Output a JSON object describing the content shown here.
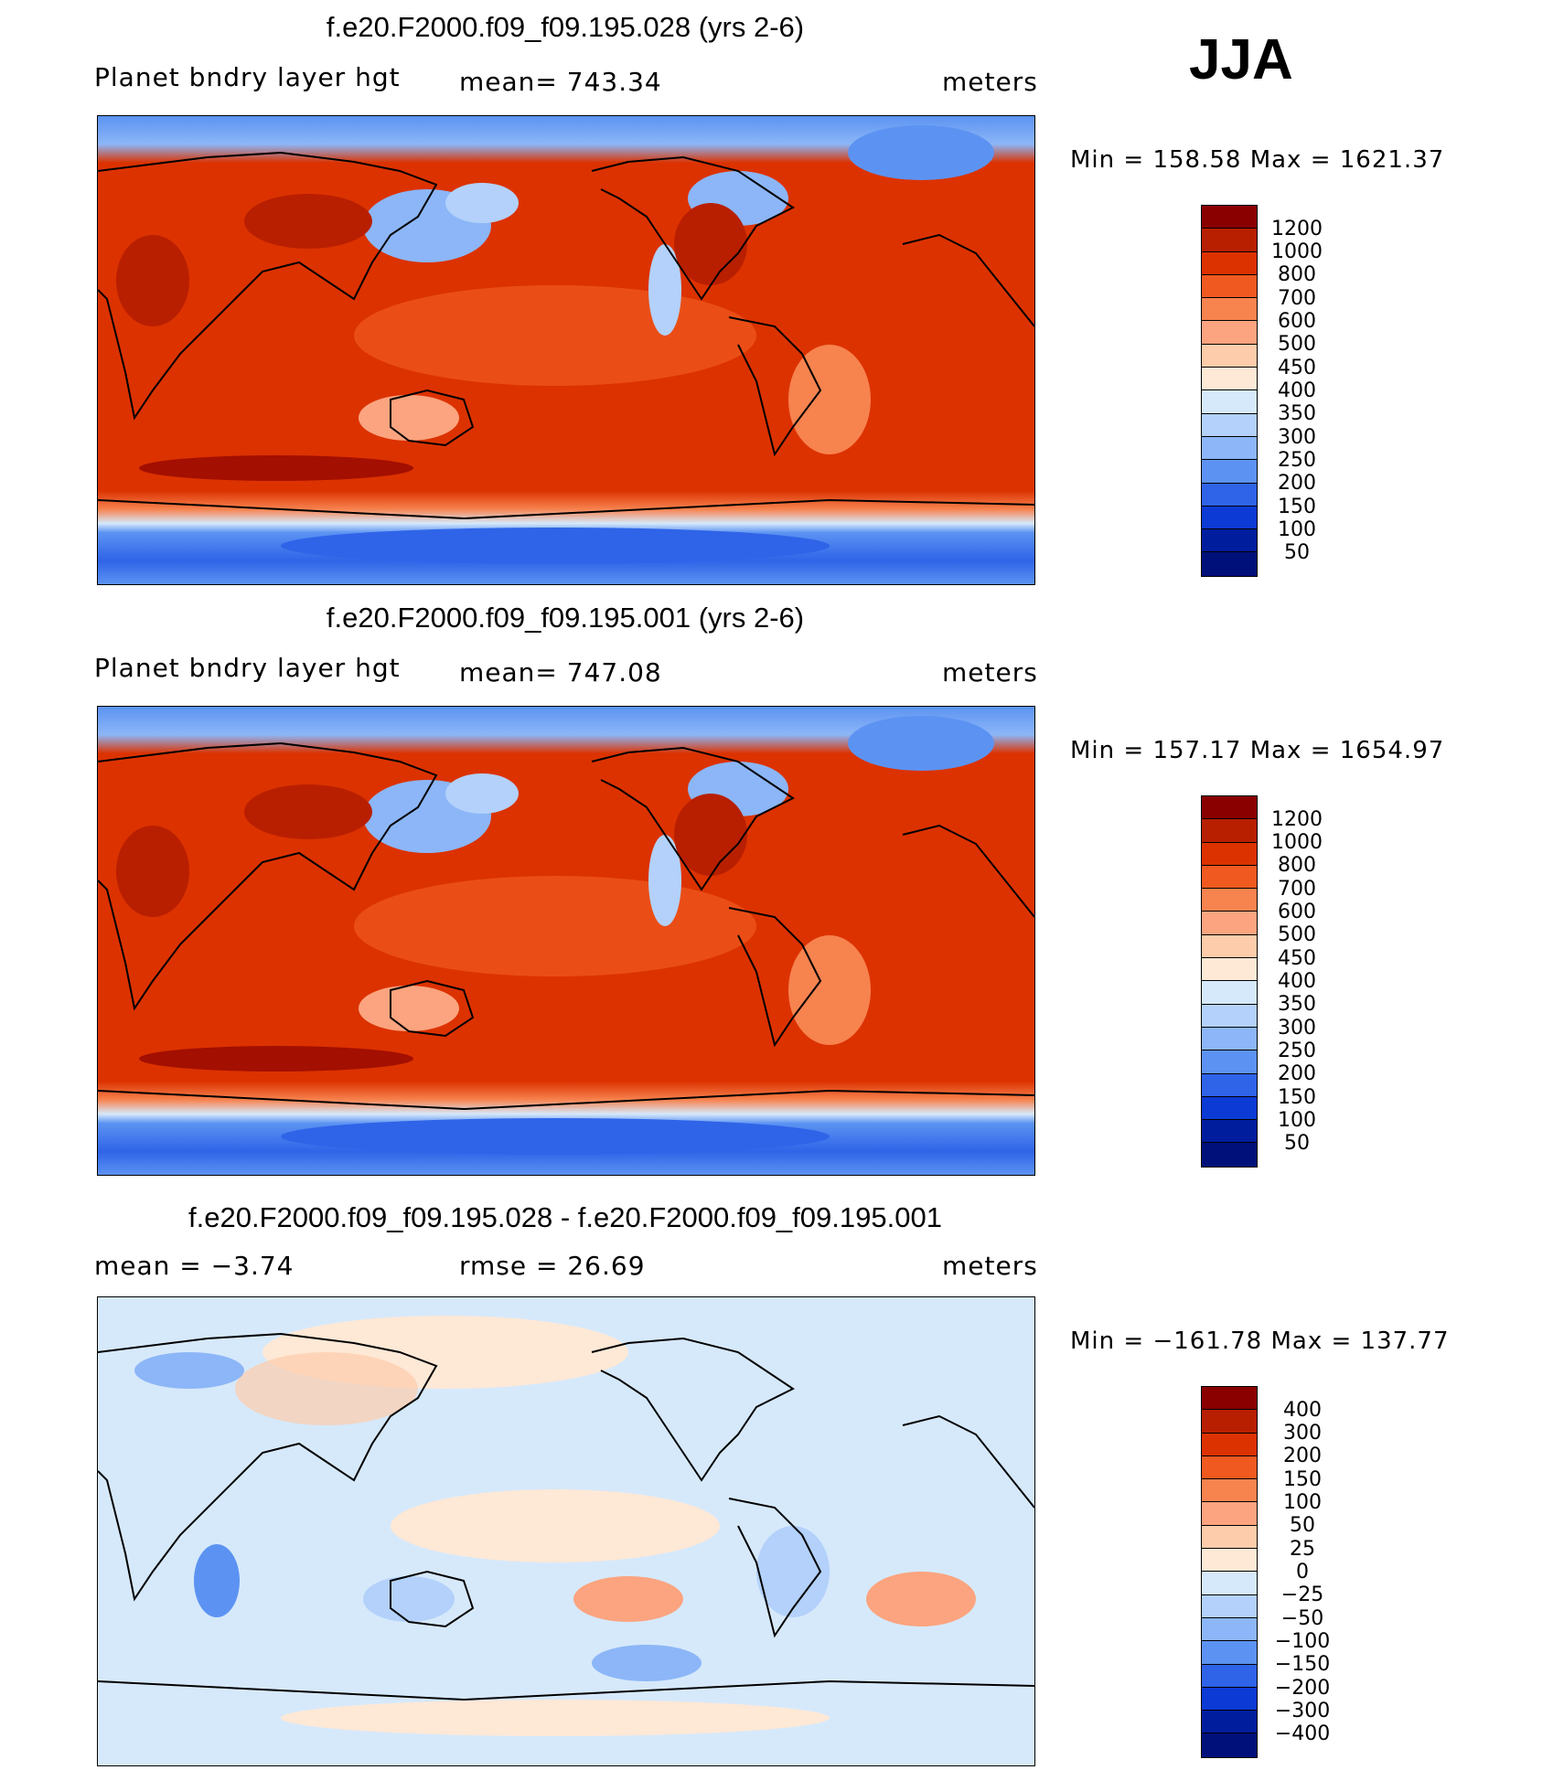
{
  "season": "JJA",
  "panels": [
    {
      "title": "f.e20.F2000.f09_f09.195.028 (yrs 2-6)",
      "left_label": "Planet bndry layer hgt",
      "center_label": "mean=  743.34",
      "units": "meters",
      "minmax": "Min  =  158.58  Max  =  1621.37",
      "colorbar": {
        "labels": [
          "1200",
          "1000",
          "800",
          "700",
          "600",
          "500",
          "450",
          "400",
          "350",
          "300",
          "250",
          "200",
          "150",
          "100",
          "50"
        ],
        "colors": [
          "#8a0000",
          "#b81f00",
          "#dc3200",
          "#f05a20",
          "#f7834f",
          "#fba47f",
          "#fdccab",
          "#fee8d6",
          "#d6e9fb",
          "#b3d1fa",
          "#8cb6f7",
          "#5c93f2",
          "#2f64e8",
          "#0c3ad4",
          "#001d9e",
          "#00107a"
        ]
      }
    },
    {
      "title": "f.e20.F2000.f09_f09.195.001 (yrs 2-6)",
      "left_label": "Planet bndry layer hgt",
      "center_label": "mean=  747.08",
      "units": "meters",
      "minmax": "Min  =  157.17  Max  =  1654.97",
      "colorbar": {
        "labels": [
          "1200",
          "1000",
          "800",
          "700",
          "600",
          "500",
          "450",
          "400",
          "350",
          "300",
          "250",
          "200",
          "150",
          "100",
          "50"
        ],
        "colors": [
          "#8a0000",
          "#b81f00",
          "#dc3200",
          "#f05a20",
          "#f7834f",
          "#fba47f",
          "#fdccab",
          "#fee8d6",
          "#d6e9fb",
          "#b3d1fa",
          "#8cb6f7",
          "#5c93f2",
          "#2f64e8",
          "#0c3ad4",
          "#001d9e",
          "#00107a"
        ]
      }
    },
    {
      "title": "f.e20.F2000.f09_f09.195.028 - f.e20.F2000.f09_f09.195.001",
      "left_label": "mean =   −3.74",
      "center_label": "rmse =    26.69",
      "units": "meters",
      "minmax": "Min  = −161.78  Max  =  137.77",
      "colorbar": {
        "labels": [
          "400",
          "300",
          "200",
          "150",
          "100",
          "50",
          "25",
          "0",
          "−25",
          "−50",
          "−100",
          "−150",
          "−200",
          "−300",
          "−400"
        ],
        "colors": [
          "#8a0000",
          "#b81f00",
          "#dc3200",
          "#f05a20",
          "#f7834f",
          "#fba47f",
          "#fdccab",
          "#fee8d6",
          "#d6e9fb",
          "#b3d1fa",
          "#8cb6f7",
          "#5c93f2",
          "#2f64e8",
          "#0c3ad4",
          "#001d9e",
          "#00107a"
        ]
      }
    }
  ]
}
